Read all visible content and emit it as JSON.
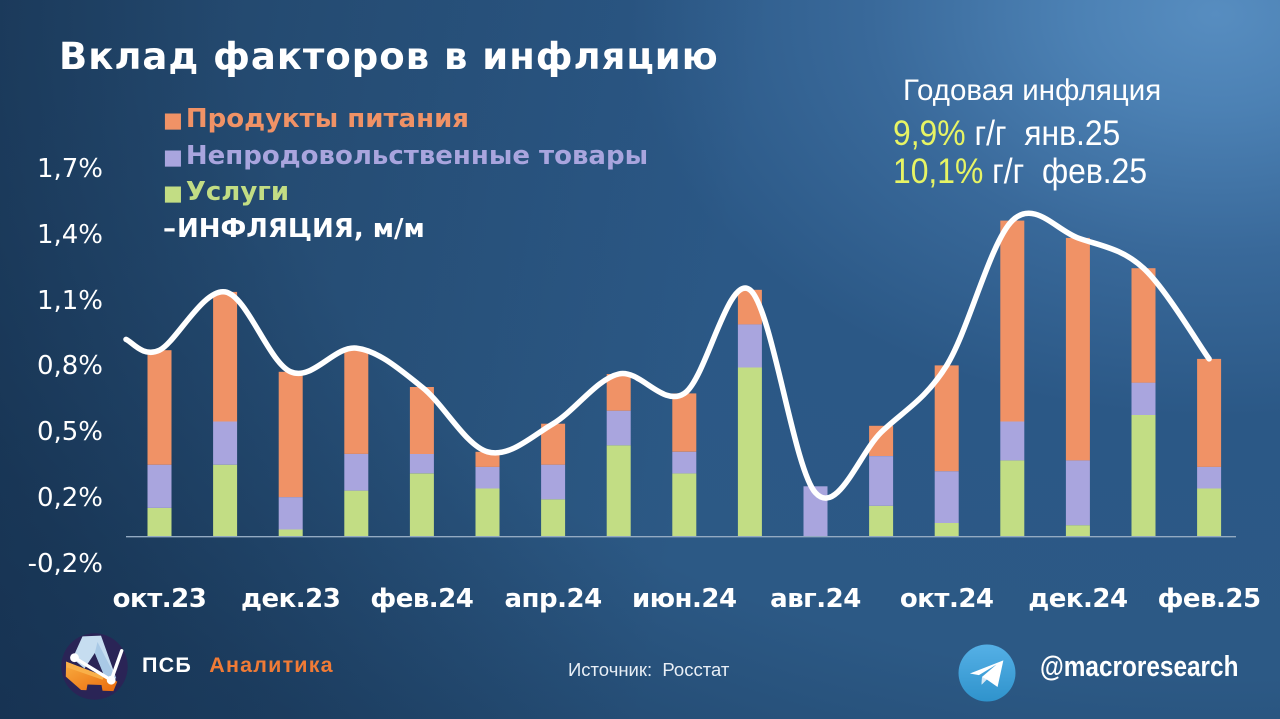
{
  "title": "Вклад факторов в инфляцию",
  "legend": {
    "items": [
      {
        "label": "Продукты питания",
        "marker": "■",
        "color": "#f09266"
      },
      {
        "label": "Непродовольственные товары",
        "marker": "■",
        "color": "#a9a5de"
      },
      {
        "label": "Услуги",
        "marker": "■",
        "color": "#c2dd84"
      },
      {
        "label": "ИНФЛЯЦИЯ, м/м",
        "marker": "–",
        "color": "#ffffff"
      }
    ]
  },
  "annual_inflation": {
    "title": "Годовая инфляция",
    "value_color": "#e7f464",
    "rows": [
      {
        "value": "9,9%",
        "rest": " г/г  янв.25"
      },
      {
        "value": "10,1%",
        "rest": " г/г  фев.25"
      }
    ]
  },
  "chart_data": {
    "type": "bar",
    "subtype": "stacked-bars-with-smooth-line",
    "categories": [
      "окт.23",
      "ноя.23",
      "дек.23",
      "янв.24",
      "фев.24",
      "мар.24",
      "апр.24",
      "май.24",
      "июн.24",
      "июл.24",
      "авг.24",
      "сен.24",
      "окт.24",
      "ноя.24",
      "дек.24",
      "янв.25",
      "фев.25"
    ],
    "series": [
      {
        "name": "Услуги",
        "color": "#c2dd84",
        "values": [
          0.13,
          0.33,
          0.03,
          0.21,
          0.29,
          0.22,
          0.17,
          0.42,
          0.29,
          0.78,
          0.0,
          0.14,
          0.06,
          0.35,
          0.05,
          0.56,
          0.22
        ]
      },
      {
        "name": "Непродовольственные товары",
        "color": "#a9a5de",
        "values": [
          0.2,
          0.2,
          0.15,
          0.17,
          0.09,
          0.1,
          0.16,
          0.16,
          0.1,
          0.2,
          0.23,
          0.23,
          0.24,
          0.18,
          0.3,
          0.15,
          0.1
        ]
      },
      {
        "name": "Продукты питания",
        "color": "#f09266",
        "values": [
          0.53,
          0.6,
          0.58,
          0.49,
          0.31,
          0.07,
          0.19,
          0.17,
          0.27,
          0.16,
          0.0,
          0.14,
          0.49,
          0.93,
          1.03,
          0.53,
          0.5
        ]
      }
    ],
    "line": {
      "name": "ИНФЛЯЦИЯ, м/м",
      "color": "#ffffff",
      "values": [
        0.86,
        1.13,
        0.76,
        0.87,
        0.69,
        0.39,
        0.52,
        0.75,
        0.66,
        1.14,
        0.2,
        0.48,
        0.79,
        1.46,
        1.38,
        1.24,
        0.82
      ],
      "lead_in_value": 0.91
    },
    "y_ticks": [
      "1,7%",
      "1,4%",
      "1,1%",
      "0,8%",
      "0,5%",
      "0,2%",
      "-0,2%"
    ],
    "x_tick_labels": [
      "окт.23",
      "дек.23",
      "фев.24",
      "апр.24",
      "июн.24",
      "авг.24",
      "окт.24",
      "дек.24",
      "фев.25"
    ],
    "ylim": [
      -0.2,
      1.75
    ],
    "grid": false,
    "legend_position": "top-left"
  },
  "footer": {
    "brand": {
      "name": "ПСБ",
      "suffix": "Аналитика",
      "suffix_color": "#f07b36"
    },
    "source": "Источник:  Росстат",
    "telegram": "@macroresearch"
  }
}
